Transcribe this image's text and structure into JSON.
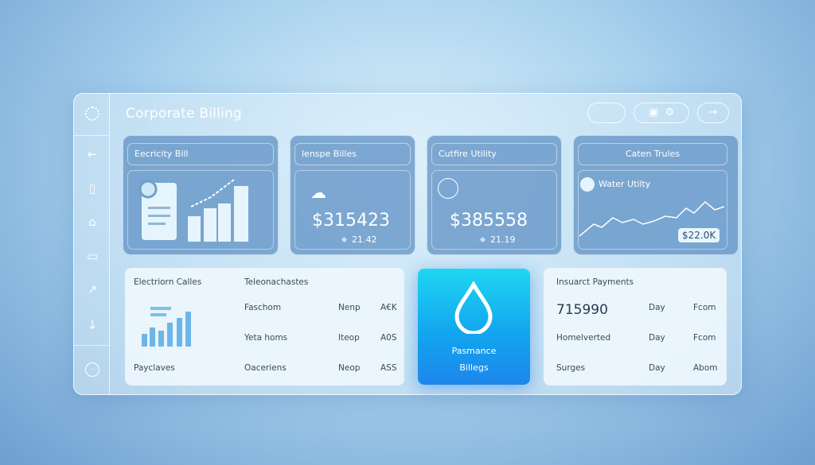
{
  "header": {
    "title": "Corporate Billing"
  },
  "cards": [
    {
      "title": "Eecricity Bill"
    },
    {
      "title": "lenspe  Billes",
      "amount": "$315423",
      "change": "21.42"
    },
    {
      "title": "Cutfire  Utility",
      "amount": "$385558",
      "change": "21.19"
    },
    {
      "title": "Caten Trules",
      "label": "Water Utilty",
      "badge": "$22.0K"
    }
  ],
  "left_panel": {
    "title": "Electriorn Calles",
    "column": "Teleonachastes",
    "rows": [
      [
        "Faschom",
        "Nenp",
        "A€K"
      ],
      [
        "Yeta homs",
        "Iteop",
        "A0S"
      ],
      [
        "Oaceriens",
        "Neop",
        "ASS"
      ]
    ],
    "footer": "Payclaves"
  },
  "feature": {
    "lines": [
      "Pasmance",
      "Billegs"
    ]
  },
  "right_panel": {
    "title": "Insuarct Payments",
    "rows": [
      [
        "715990",
        "Day",
        "Fcom"
      ],
      [
        "Homelverted",
        "Day",
        "Fcom"
      ],
      [
        "Surges",
        "Day",
        "Abom"
      ]
    ]
  }
}
